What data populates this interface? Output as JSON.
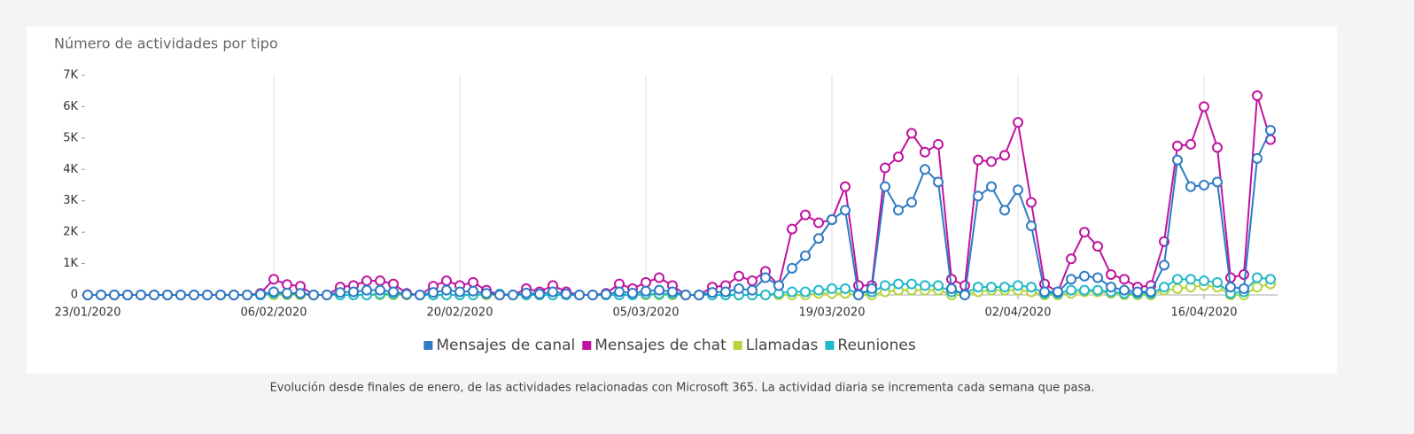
{
  "chart_data": {
    "type": "line",
    "title": "Número de actividades por tipo",
    "categories": [
      "23/01/2020",
      null,
      null,
      null,
      null,
      null,
      null,
      null,
      null,
      null,
      null,
      null,
      null,
      null,
      "06/02/2020",
      null,
      null,
      null,
      null,
      null,
      null,
      null,
      null,
      null,
      null,
      null,
      null,
      null,
      "20/02/2020",
      null,
      null,
      null,
      null,
      null,
      null,
      null,
      null,
      null,
      null,
      null,
      null,
      null,
      "05/03/2020",
      null,
      null,
      null,
      null,
      null,
      null,
      null,
      null,
      null,
      null,
      null,
      null,
      null,
      "19/03/2020",
      null,
      null,
      null,
      null,
      null,
      null,
      null,
      null,
      null,
      null,
      null,
      null,
      null,
      "02/04/2020",
      null,
      null,
      null,
      null,
      null,
      null,
      null,
      null,
      null,
      null,
      null,
      null,
      null,
      "16/04/2020",
      null,
      null,
      null,
      null,
      null
    ],
    "series": [
      {
        "name": "Mensajes de canal",
        "color": "#2e7bc4",
        "values": [
          0,
          0,
          0,
          0,
          0,
          0,
          0,
          0,
          0,
          0,
          0,
          0,
          0,
          20,
          100,
          60,
          50,
          0,
          0,
          80,
          100,
          150,
          150,
          100,
          20,
          0,
          80,
          150,
          100,
          120,
          50,
          0,
          0,
          60,
          30,
          100,
          30,
          0,
          0,
          20,
          100,
          60,
          120,
          150,
          100,
          0,
          0,
          80,
          100,
          200,
          150,
          550,
          300,
          850,
          1250,
          1800,
          2400,
          2700,
          0,
          200,
          3450,
          2700,
          2950,
          4000,
          3600,
          200,
          0,
          3150,
          3450,
          2700,
          3350,
          2200,
          100,
          100,
          500,
          600,
          550,
          250,
          150,
          100,
          100,
          950,
          4300,
          3450,
          3500,
          3600,
          250,
          200,
          4350,
          5250
        ]
      },
      {
        "name": "Mensajes de chat",
        "color": "#c0139f",
        "values": [
          0,
          0,
          0,
          0,
          0,
          0,
          0,
          0,
          0,
          0,
          0,
          0,
          0,
          50,
          500,
          330,
          280,
          0,
          0,
          250,
          300,
          450,
          450,
          350,
          50,
          0,
          280,
          450,
          300,
          400,
          150,
          0,
          0,
          200,
          100,
          300,
          100,
          0,
          0,
          50,
          350,
          200,
          400,
          550,
          300,
          0,
          0,
          250,
          300,
          600,
          450,
          750,
          300,
          2100,
          2550,
          2300,
          2400,
          3450,
          300,
          300,
          4050,
          4400,
          5150,
          4550,
          4800,
          500,
          300,
          4300,
          4250,
          4450,
          5500,
          2950,
          350,
          100,
          1150,
          2000,
          1550,
          650,
          500,
          250,
          300,
          1700,
          4750,
          4800,
          6000,
          4700,
          550,
          650,
          6350,
          4950
        ]
      },
      {
        "name": "Llamadas",
        "color": "#b6d43c",
        "values": [
          0,
          0,
          0,
          0,
          0,
          0,
          0,
          0,
          0,
          0,
          0,
          0,
          0,
          0,
          0,
          0,
          0,
          0,
          0,
          0,
          0,
          0,
          0,
          0,
          0,
          0,
          0,
          0,
          0,
          0,
          0,
          0,
          0,
          0,
          0,
          0,
          0,
          0,
          0,
          0,
          0,
          0,
          0,
          0,
          0,
          0,
          0,
          0,
          0,
          0,
          0,
          0,
          0,
          0,
          0,
          50,
          50,
          50,
          0,
          0,
          100,
          150,
          150,
          150,
          150,
          0,
          0,
          100,
          150,
          150,
          150,
          100,
          0,
          0,
          50,
          100,
          100,
          50,
          0,
          0,
          0,
          150,
          200,
          250,
          300,
          250,
          0,
          0,
          250,
          350
        ]
      },
      {
        "name": "Reuniones",
        "color": "#1fb9cc",
        "values": [
          0,
          0,
          0,
          0,
          0,
          0,
          0,
          0,
          0,
          0,
          0,
          0,
          0,
          0,
          50,
          30,
          30,
          0,
          0,
          0,
          0,
          0,
          30,
          30,
          30,
          0,
          0,
          0,
          0,
          0,
          30,
          30,
          0,
          0,
          0,
          0,
          0,
          0,
          0,
          0,
          0,
          0,
          30,
          30,
          30,
          0,
          0,
          0,
          0,
          0,
          0,
          0,
          50,
          100,
          100,
          150,
          200,
          200,
          50,
          100,
          300,
          350,
          350,
          300,
          300,
          100,
          50,
          250,
          250,
          250,
          300,
          250,
          50,
          50,
          150,
          150,
          150,
          100,
          50,
          50,
          50,
          250,
          500,
          500,
          450,
          400,
          50,
          100,
          550,
          500
        ]
      }
    ],
    "ylim": [
      0,
      7000
    ],
    "yticks": [
      0,
      {
        "value": 1000,
        "label": "1K"
      },
      {
        "value": 2000,
        "label": "2K"
      },
      {
        "value": 3000,
        "label": "3K"
      },
      {
        "value": 4000,
        "label": "4K"
      },
      {
        "value": 5000,
        "label": "5K"
      },
      {
        "value": 6000,
        "label": "6K"
      },
      {
        "value": 7000,
        "label": "7K"
      }
    ],
    "grid": true,
    "legend": "bottom"
  },
  "caption": "Evolución desde  finales de enero, de las actividades relacionadas con Microsoft 365. La actividad diaria se incrementa cada semana que pasa."
}
